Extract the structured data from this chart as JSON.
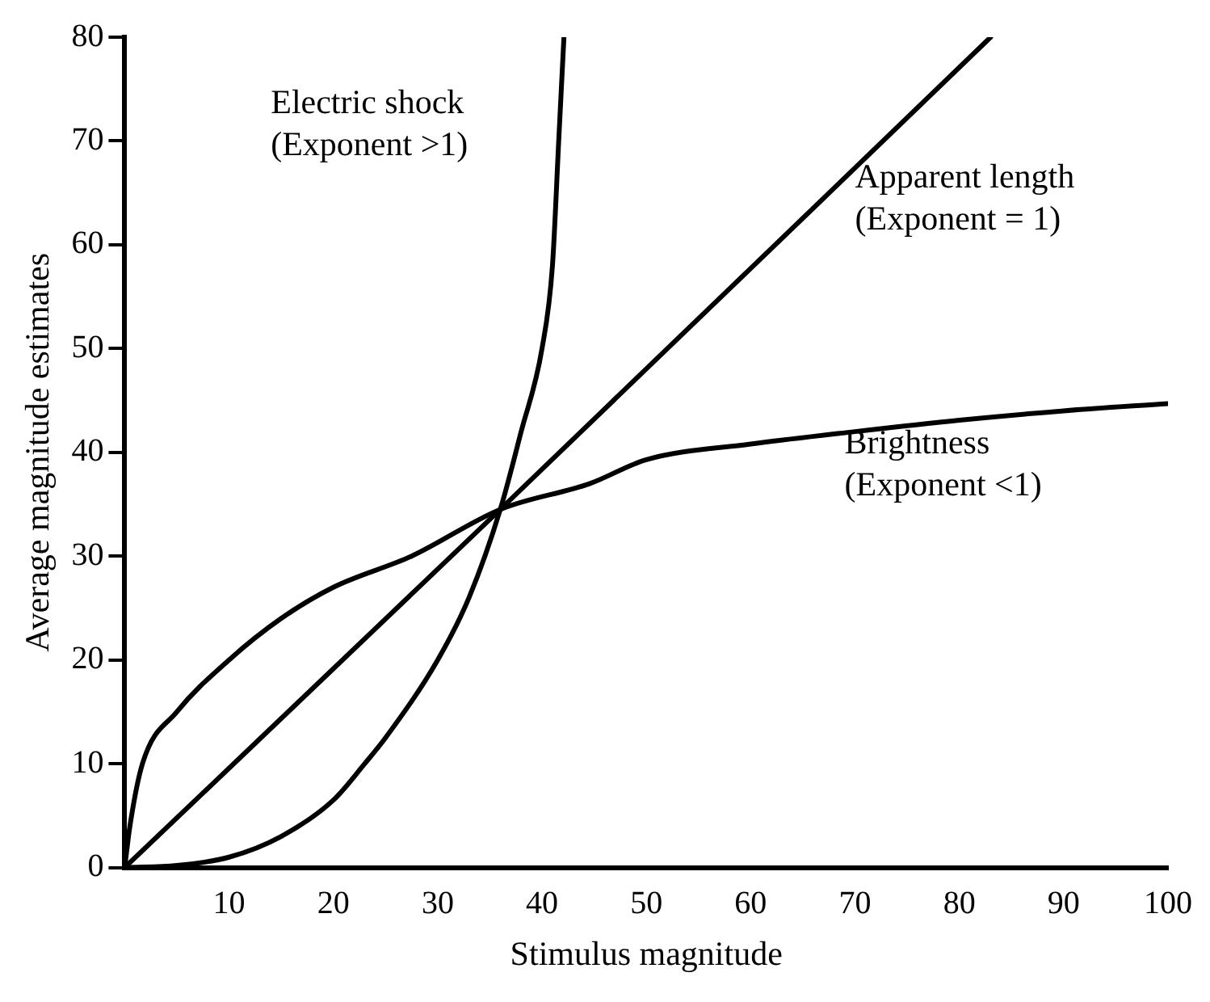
{
  "chart_data": {
    "type": "line",
    "xlabel": "Stimulus magnitude",
    "ylabel": "Average magnitude estimates",
    "xlim": [
      0,
      100
    ],
    "ylim": [
      0,
      80
    ],
    "xticks": [
      10,
      20,
      30,
      40,
      50,
      60,
      70,
      80,
      90,
      100
    ],
    "yticks": [
      0,
      10,
      20,
      30,
      40,
      50,
      60,
      70,
      80
    ],
    "grid": false,
    "legend": false,
    "marker": "none",
    "line_style": "solid",
    "series": [
      {
        "name": "Electric shock (Exponent >1)",
        "color": "#000000",
        "x": [
          0,
          5,
          10,
          15,
          20,
          23,
          25,
          30,
          33,
          36,
          38,
          40,
          41,
          41.6,
          42.1
        ],
        "values": [
          0,
          0.2,
          1,
          3,
          6.5,
          10,
          12.5,
          20,
          26,
          34.5,
          42,
          50,
          58,
          70,
          80
        ]
      },
      {
        "name": "Apparent length (Exponent = 1)",
        "color": "#000000",
        "x": [
          0,
          36,
          83
        ],
        "values": [
          0,
          34.5,
          80
        ]
      },
      {
        "name": "Brightness (Exponent <1)",
        "color": "#000000",
        "x": [
          0,
          0.5,
          1.7,
          5,
          10,
          15,
          20,
          27.5,
          36,
          44.6,
          50,
          60,
          70,
          80,
          90,
          100
        ],
        "values": [
          0,
          4,
          10,
          15,
          20,
          24,
          27,
          30,
          34.5,
          37,
          39.3,
          40.8,
          42,
          43.1,
          44,
          44.7
        ]
      }
    ]
  }
}
